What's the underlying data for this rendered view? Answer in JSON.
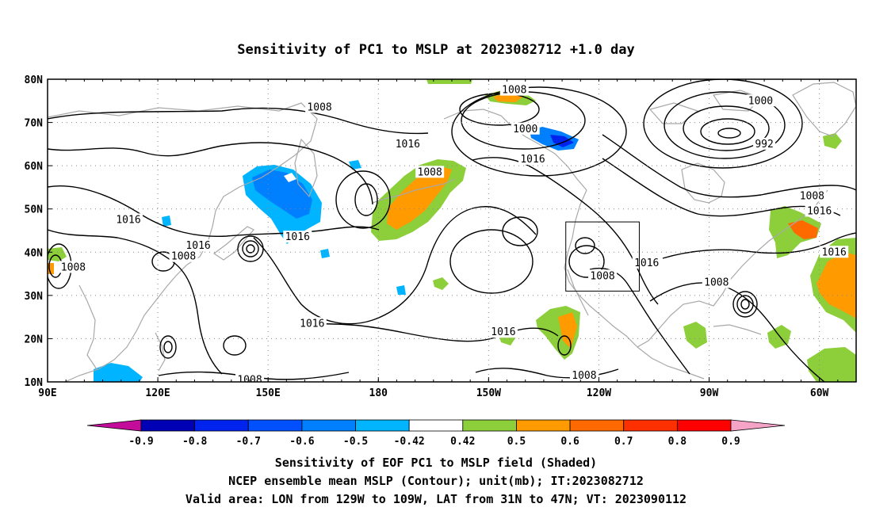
{
  "title": "Sensitivity of PC1 to MSLP at 2023082712 +1.0 day",
  "map": {
    "lon_ticks": [
      "90E",
      "120E",
      "150E",
      "180",
      "150W",
      "120W",
      "90W",
      "60W"
    ],
    "lat_ticks": [
      "80N",
      "70N",
      "60N",
      "50N",
      "40N",
      "30N",
      "20N",
      "10N"
    ],
    "lon_range": [
      "90E",
      "50W"
    ],
    "lat_range": [
      "10N",
      "80N"
    ],
    "projection": "cylindrical equidistant",
    "grid": "dotted",
    "valid_box": {
      "lon": [
        "129W",
        "109W"
      ],
      "lat": [
        "31N",
        "47N"
      ]
    },
    "contour_labels": [
      {
        "text": "1008",
        "lon": 164,
        "lat": 73.5
      },
      {
        "text": "1016",
        "lon": -172,
        "lat": 65
      },
      {
        "text": "1008",
        "lon": -166,
        "lat": 58.5
      },
      {
        "text": "1008",
        "lon": -143,
        "lat": 77.5
      },
      {
        "text": "1000",
        "lon": -140,
        "lat": 68.5
      },
      {
        "text": "1016",
        "lon": -138,
        "lat": 61.5
      },
      {
        "text": "1000",
        "lon": -76,
        "lat": 75
      },
      {
        "text": "992",
        "lon": -75,
        "lat": 65
      },
      {
        "text": "1008",
        "lon": -62,
        "lat": 53
      },
      {
        "text": "1016",
        "lon": -60,
        "lat": 49.5
      },
      {
        "text": "1016",
        "lon": -56,
        "lat": 40
      },
      {
        "text": "1016",
        "lon": -107,
        "lat": 37.5
      },
      {
        "text": "1008",
        "lon": -88,
        "lat": 33
      },
      {
        "text": "1008",
        "lon": -119,
        "lat": 34.5
      },
      {
        "text": "1016",
        "lon": -146,
        "lat": 21.5
      },
      {
        "text": "1008",
        "lon": -124,
        "lat": 11.5
      },
      {
        "text": "1016",
        "lon": 158,
        "lat": 43.5
      },
      {
        "text": "1016",
        "lon": 112,
        "lat": 47.5
      },
      {
        "text": "1016",
        "lon": 131,
        "lat": 41.5
      },
      {
        "text": "1008",
        "lon": 127,
        "lat": 39
      },
      {
        "text": "1008",
        "lon": 97,
        "lat": 36.5
      },
      {
        "text": "1016",
        "lon": 162,
        "lat": 23.5
      },
      {
        "text": "1008",
        "lon": 145,
        "lat": 10.5
      }
    ]
  },
  "colorbar": {
    "labels": [
      "-0.9",
      "-0.8",
      "-0.7",
      "-0.6",
      "-0.5",
      "-0.42",
      "0.42",
      "0.5",
      "0.6",
      "0.7",
      "0.8",
      "0.9"
    ],
    "colors": [
      "#0000b4",
      "#0024ee",
      "#0050ff",
      "#0080ff",
      "#00b4ff",
      "#ffffff",
      "#8ccf3a",
      "#ff9a00",
      "#ff6a00",
      "#ff3000",
      "#ff0000"
    ],
    "low_end_color": "#c40c9a",
    "high_end_color": "#f6a3c8"
  },
  "shading_colors": {
    "orange": "#ff9a00",
    "green": "#8ccf3a",
    "light_blue": "#00b4ff",
    "blue": "#0080ff",
    "dark_blue": "#0024ee",
    "coastline": "#a8a8a8"
  },
  "captions": [
    "Sensitivity of EOF PC1 to MSLP field (Shaded)",
    "NCEP ensemble mean MSLP (Contour); unit(mb); IT:2023082712",
    "Valid area: LON from 129W to 109W, LAT from 31N to 47N; VT: 2023090112"
  ]
}
